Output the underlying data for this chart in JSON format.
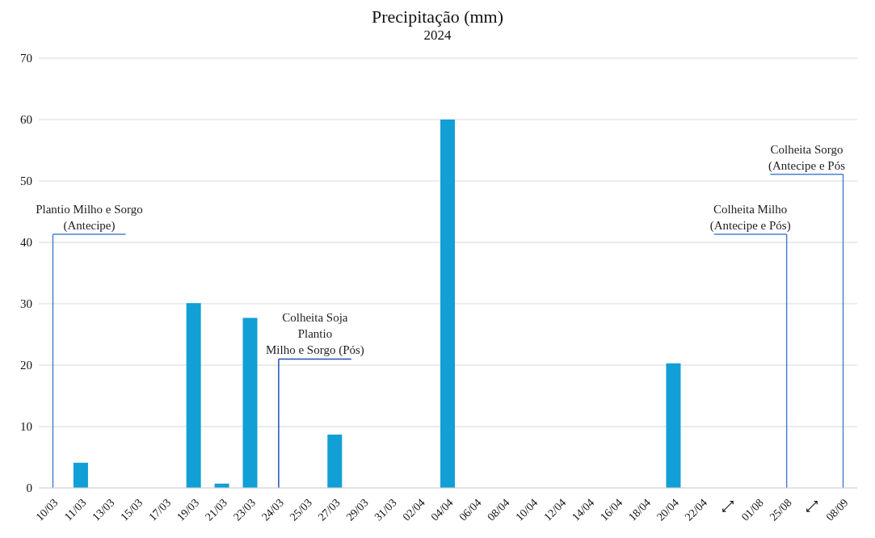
{
  "chart_data": {
    "type": "bar",
    "title": "Precipitação (mm)",
    "subtitle": "2024",
    "categories": [
      "10/03",
      "11/03",
      "13/03",
      "15/03",
      "17/03",
      "19/03",
      "21/03",
      "23/03",
      "24/03",
      "25/03",
      "27/03",
      "29/03",
      "31/03",
      "02/04",
      "04/04",
      "06/04",
      "08/04",
      "10/04",
      "12/04",
      "14/04",
      "16/04",
      "18/04",
      "20/04",
      "22/04",
      "⟷",
      "01/08",
      "25/08",
      "⟷",
      "08/09"
    ],
    "values": [
      null,
      4.1,
      null,
      null,
      null,
      30.1,
      0.7,
      27.7,
      null,
      null,
      8.7,
      null,
      null,
      null,
      60,
      null,
      null,
      null,
      null,
      null,
      null,
      null,
      20.3,
      null,
      null,
      null,
      null,
      null,
      null
    ],
    "color": "#119fd6",
    "ylim": [
      0,
      70
    ],
    "yticks": [
      0,
      10,
      20,
      30,
      40,
      50,
      60,
      70
    ],
    "grid": "y",
    "legend": false,
    "ref_lines": [
      {
        "axis": "x",
        "value": "10/03",
        "label": "Plantio Milho e Sorgo\n(Antecipe)",
        "color": "#4a7fd4"
      },
      {
        "axis": "x",
        "value": "24/03",
        "label": "Colheita Soja\nPlantio\nMilho e Sorgo (Pós)",
        "color": "#1f4fb8"
      },
      {
        "axis": "x",
        "value": "25/08",
        "label": "Colheita  Milho\n(Antecipe e Pós)",
        "color": "#4a7fd4"
      },
      {
        "axis": "x",
        "value": "08/09",
        "label": "Colheita Sorgo\n(Antecipe e Pós",
        "color": "#4a7fd4"
      }
    ]
  }
}
